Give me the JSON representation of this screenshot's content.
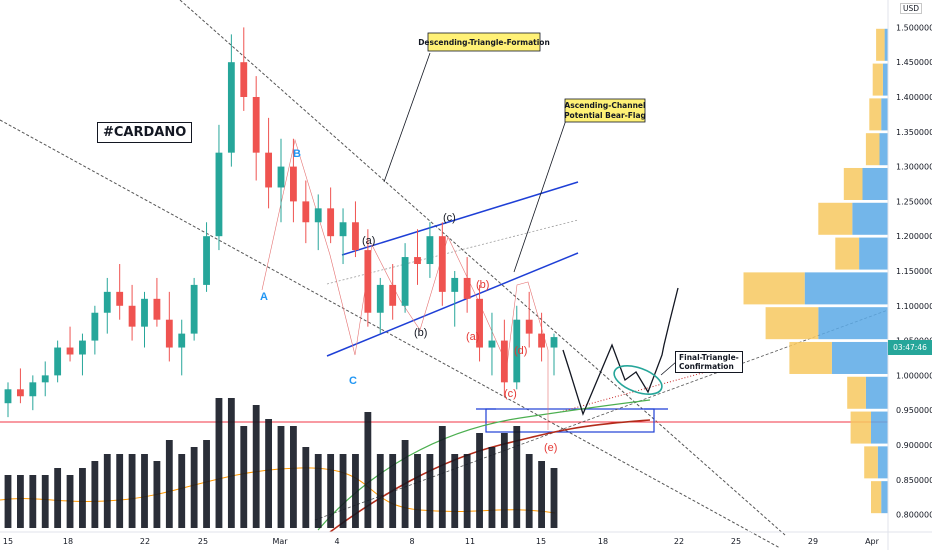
{
  "currency": "USD",
  "ticker_label": "#CARDANO",
  "current_price_badge": "03:47:46",
  "callouts": {
    "descending": "Descending-Triangle-Formation",
    "ascending_line1": "Ascending-Channel",
    "ascending_line2": "Potential Bear-Flag",
    "final_line1": "Final-Triangle-",
    "final_line2": "Confirmation"
  },
  "wave_labels": {
    "A": "A",
    "B": "B",
    "C": "C",
    "a_up": "(a)",
    "b_up": "(b)",
    "c_up": "(c)",
    "a_red": "(a)",
    "b_red": "(b)",
    "c_red": "(c)",
    "d_red": "(d)",
    "e_red": "(e)"
  },
  "colors": {
    "up": "#26a69a",
    "down": "#ef5350",
    "volume": "#131722",
    "channel": "#1e3fd6",
    "support": "#f23645",
    "ma_green": "#4caf50",
    "ma_brown": "#b22b1a",
    "ma_orange": "#ff9800",
    "profile_blue": "#5aa9e6",
    "profile_yellow": "#f7c85f",
    "callout_fill": "#fff176"
  },
  "chart_data": {
    "type": "candlestick",
    "title": "#CARDANO",
    "currency": "USD",
    "x_tick_labels": [
      "15",
      "18",
      "22",
      "25",
      "Mar",
      "4",
      "8",
      "11",
      "15",
      "18",
      "22",
      "25",
      "29",
      "Apr"
    ],
    "y_tick_labels": [
      "1.50000000",
      "1.45000000",
      "1.40000000",
      "1.35000000",
      "1.30000000",
      "1.25000000",
      "1.20000000",
      "1.15000000",
      "1.10000000",
      "1.05000000",
      "1.00000000",
      "0.95000000",
      "0.90000000",
      "0.85000000",
      "0.80000000"
    ],
    "ylim": [
      0.785,
      1.525
    ],
    "support_level": 0.945,
    "price_close": 1.055,
    "series": [
      {
        "name": "ADA",
        "ohlc_4h_approx": [
          [
            0.96,
            0.99,
            0.94,
            0.98
          ],
          [
            0.98,
            1.01,
            0.96,
            0.97
          ],
          [
            0.97,
            1.0,
            0.95,
            0.99
          ],
          [
            0.99,
            1.02,
            0.97,
            1.0
          ],
          [
            1.0,
            1.05,
            0.99,
            1.04
          ],
          [
            1.04,
            1.07,
            1.02,
            1.03
          ],
          [
            1.03,
            1.06,
            1.0,
            1.05
          ],
          [
            1.05,
            1.1,
            1.03,
            1.09
          ],
          [
            1.09,
            1.14,
            1.06,
            1.12
          ],
          [
            1.12,
            1.16,
            1.08,
            1.1
          ],
          [
            1.1,
            1.13,
            1.05,
            1.07
          ],
          [
            1.07,
            1.12,
            1.04,
            1.11
          ],
          [
            1.11,
            1.14,
            1.07,
            1.08
          ],
          [
            1.08,
            1.12,
            1.02,
            1.04
          ],
          [
            1.04,
            1.08,
            1.0,
            1.06
          ],
          [
            1.06,
            1.14,
            1.05,
            1.13
          ],
          [
            1.13,
            1.22,
            1.12,
            1.2
          ],
          [
            1.2,
            1.36,
            1.18,
            1.32
          ],
          [
            1.32,
            1.49,
            1.3,
            1.45
          ],
          [
            1.45,
            1.5,
            1.38,
            1.4
          ],
          [
            1.4,
            1.43,
            1.28,
            1.32
          ],
          [
            1.32,
            1.37,
            1.24,
            1.27
          ],
          [
            1.27,
            1.34,
            1.22,
            1.3
          ],
          [
            1.3,
            1.34,
            1.22,
            1.25
          ],
          [
            1.25,
            1.28,
            1.19,
            1.22
          ],
          [
            1.22,
            1.26,
            1.18,
            1.24
          ],
          [
            1.24,
            1.27,
            1.19,
            1.2
          ],
          [
            1.2,
            1.24,
            1.16,
            1.22
          ],
          [
            1.22,
            1.25,
            1.17,
            1.18
          ],
          [
            1.18,
            1.21,
            1.07,
            1.09
          ],
          [
            1.09,
            1.14,
            1.06,
            1.13
          ],
          [
            1.13,
            1.16,
            1.08,
            1.1
          ],
          [
            1.1,
            1.19,
            1.09,
            1.17
          ],
          [
            1.17,
            1.21,
            1.13,
            1.16
          ],
          [
            1.16,
            1.22,
            1.14,
            1.2
          ],
          [
            1.2,
            1.22,
            1.1,
            1.12
          ],
          [
            1.12,
            1.15,
            1.07,
            1.14
          ],
          [
            1.14,
            1.17,
            1.09,
            1.11
          ],
          [
            1.11,
            1.13,
            1.02,
            1.04
          ],
          [
            1.04,
            1.09,
            1.0,
            1.05
          ],
          [
            1.05,
            1.08,
            0.97,
            0.99
          ],
          [
            0.99,
            1.1,
            0.98,
            1.08
          ],
          [
            1.08,
            1.12,
            1.04,
            1.06
          ],
          [
            1.06,
            1.09,
            1.02,
            1.04
          ],
          [
            1.04,
            1.06,
            1.0,
            1.055
          ]
        ]
      }
    ],
    "volume_profile": [
      {
        "price": 1.475,
        "buy": 0.1,
        "sell": 0.04
      },
      {
        "price": 1.425,
        "buy": 0.12,
        "sell": 0.06
      },
      {
        "price": 1.375,
        "buy": 0.14,
        "sell": 0.08
      },
      {
        "price": 1.325,
        "buy": 0.16,
        "sell": 0.1
      },
      {
        "price": 1.275,
        "buy": 0.22,
        "sell": 0.3
      },
      {
        "price": 1.225,
        "buy": 0.4,
        "sell": 0.42
      },
      {
        "price": 1.175,
        "buy": 0.28,
        "sell": 0.34
      },
      {
        "price": 1.125,
        "buy": 0.72,
        "sell": 0.98
      },
      {
        "price": 1.075,
        "buy": 0.62,
        "sell": 0.82
      },
      {
        "price": 1.025,
        "buy": 0.5,
        "sell": 0.66
      },
      {
        "price": 0.975,
        "buy": 0.22,
        "sell": 0.26
      },
      {
        "price": 0.925,
        "buy": 0.24,
        "sell": 0.2
      },
      {
        "price": 0.875,
        "buy": 0.16,
        "sell": 0.12
      },
      {
        "price": 0.825,
        "buy": 0.12,
        "sell": 0.08
      }
    ]
  }
}
